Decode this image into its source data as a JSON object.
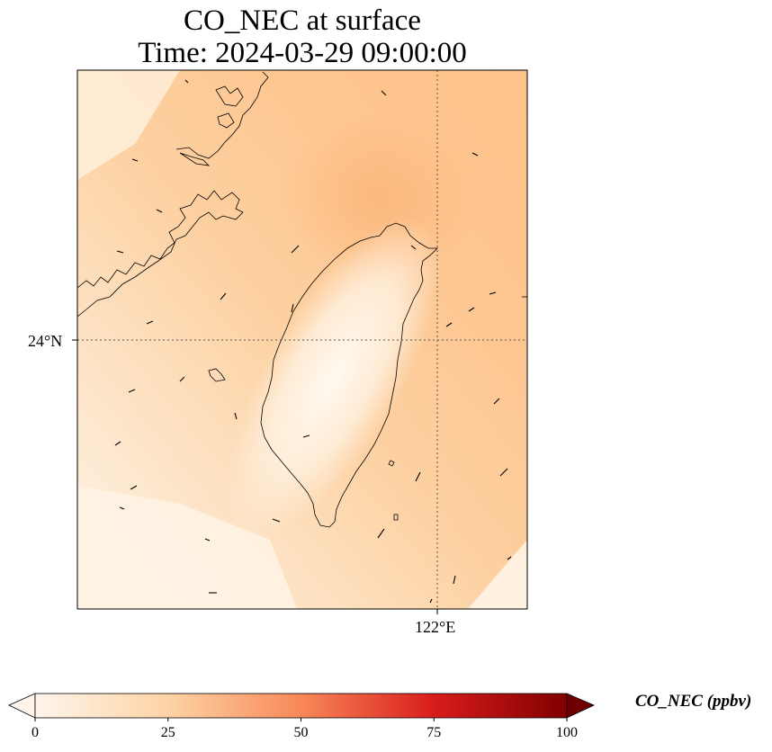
{
  "title": {
    "line1": "CO_NEC at surface",
    "line2": "Time: 2024-03-29 09:00:00"
  },
  "map": {
    "lat_label": "24°N",
    "lon_label": "122°E",
    "gridline_color": "#555555",
    "field_colors": {
      "low": "#fff5ea",
      "mid": "#fdd9ad",
      "high": "#fdc38a"
    }
  },
  "colorbar": {
    "title": "CO_NEC (ppbv)",
    "ticks": [
      "0",
      "25",
      "50",
      "75",
      "100"
    ],
    "min": 0,
    "max": 100,
    "colormap": "Oranges-Reds",
    "extend": "both"
  }
}
